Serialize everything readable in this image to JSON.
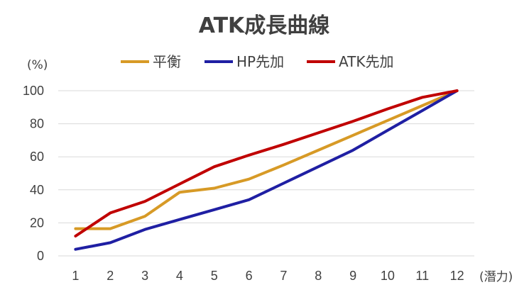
{
  "chart_data": {
    "type": "line",
    "title": "ATK成長曲線",
    "ylabel": "(%)",
    "xlabel": "(潛力)",
    "categories": [
      "1",
      "2",
      "3",
      "4",
      "5",
      "6",
      "7",
      "8",
      "9",
      "10",
      "11",
      "12"
    ],
    "ylim": [
      0,
      100
    ],
    "yticks": [
      0,
      20,
      40,
      60,
      80,
      100
    ],
    "grid": true,
    "legend_position": "top",
    "series": [
      {
        "name": "平衡",
        "color": "#d79a26",
        "values": [
          16.5,
          16.5,
          24,
          38.5,
          41,
          46.5,
          55,
          64,
          73,
          82,
          91,
          100
        ]
      },
      {
        "name": "HP先加",
        "color": "#1f1fa3",
        "values": [
          4,
          8,
          16,
          22,
          28,
          34,
          44,
          54,
          64,
          76,
          88,
          100
        ]
      },
      {
        "name": "ATK先加",
        "color": "#c00000",
        "values": [
          12,
          26,
          33,
          43.5,
          54,
          61,
          67.5,
          74.5,
          81.5,
          89,
          96,
          100
        ]
      }
    ]
  }
}
